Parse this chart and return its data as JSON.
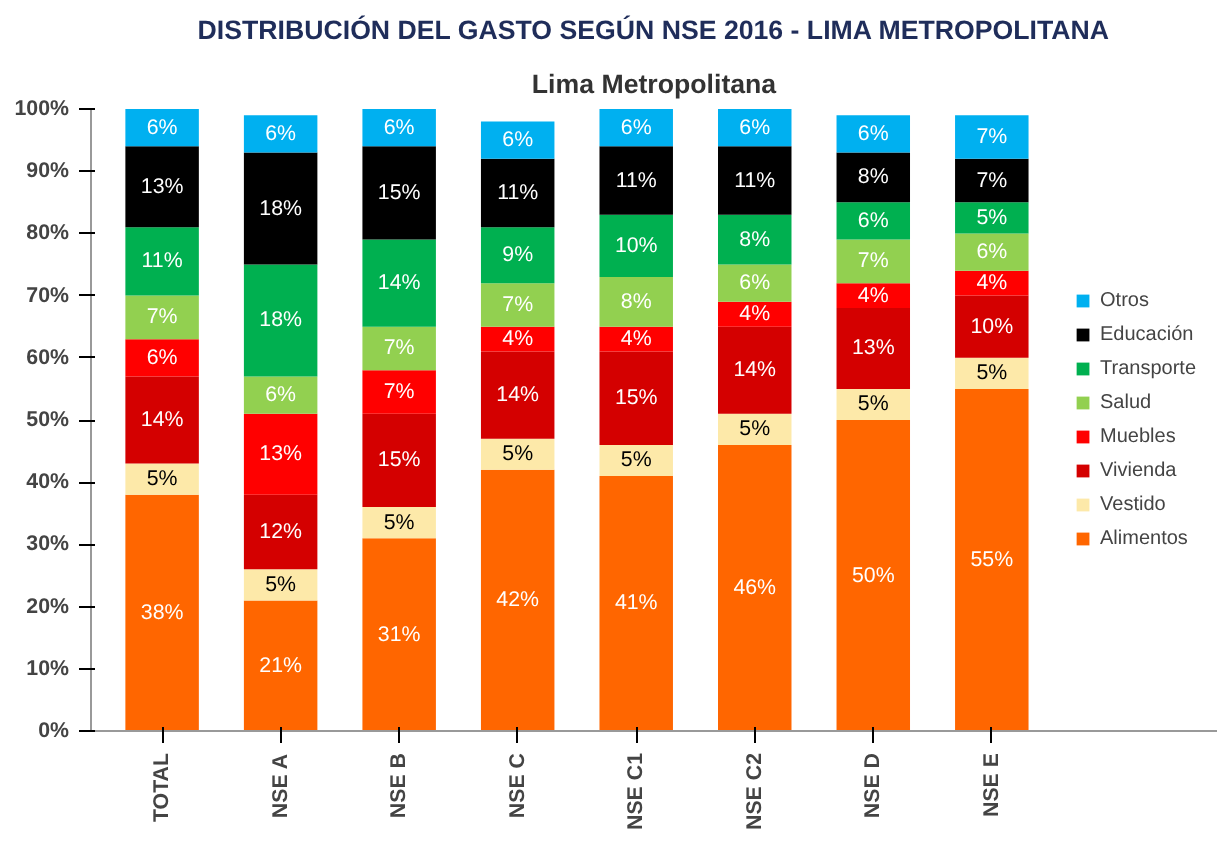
{
  "chart_data": {
    "type": "bar",
    "stacked": true,
    "title": "DISTRIBUCIÓN DEL GASTO SEGÚN NSE 2016 - LIMA METROPOLITANA",
    "subtitle": "Lima Metropolitana",
    "categories": [
      "TOTAL",
      "NSE A",
      "NSE B",
      "NSE C",
      "NSE C1",
      "NSE C2",
      "NSE D",
      "NSE E"
    ],
    "series": [
      {
        "name": "Alimentos",
        "color": "#ff6600",
        "values": [
          38,
          21,
          31,
          42,
          41,
          46,
          50,
          55
        ],
        "value_labels": [
          "38%",
          "21%",
          "31%",
          "42%",
          "41%",
          "46%",
          "50%",
          "55%"
        ]
      },
      {
        "name": "Vestido",
        "color": "#fde9a9",
        "values": [
          5,
          5,
          5,
          5,
          5,
          5,
          5,
          5
        ],
        "value_labels": [
          "5%",
          "5%",
          "5%",
          "5%",
          "5%",
          "5%",
          "5%",
          "5%"
        ]
      },
      {
        "name": "Vivienda",
        "color": "#d40000",
        "values": [
          14,
          12,
          15,
          14,
          15,
          14,
          13,
          10
        ],
        "value_labels": [
          "14%",
          "12%",
          "15%",
          "14%",
          "15%",
          "14%",
          "13%",
          "10%"
        ]
      },
      {
        "name": "Muebles",
        "color": "#ff0000",
        "values": [
          6,
          13,
          7,
          4,
          4,
          4,
          4,
          4
        ],
        "value_labels": [
          "6%",
          "13%",
          "7%",
          "4%",
          "4%",
          "4%",
          "4%",
          "4%"
        ]
      },
      {
        "name": "Salud",
        "color": "#92d050",
        "values": [
          7,
          6,
          7,
          7,
          8,
          6,
          7,
          6
        ],
        "value_labels": [
          "7%",
          "6%",
          "7%",
          "7%",
          "8%",
          "6%",
          "7%",
          "6%"
        ]
      },
      {
        "name": "Transporte",
        "color": "#00b050",
        "values": [
          11,
          18,
          14,
          9,
          10,
          8,
          6,
          5
        ],
        "value_labels": [
          "11%",
          "18%",
          "14%",
          "9%",
          "10%",
          "8%",
          "6%",
          "5%"
        ]
      },
      {
        "name": "Educación",
        "color": "#000000",
        "values": [
          13,
          18,
          15,
          11,
          11,
          11,
          8,
          7
        ],
        "value_labels": [
          "13%",
          "18%",
          "15%",
          "11%",
          "11%",
          "11%",
          "8%",
          "7%"
        ]
      },
      {
        "name": "Otros",
        "color": "#00b0f0",
        "values": [
          6,
          6,
          6,
          6,
          6,
          6,
          6,
          7
        ],
        "value_labels": [
          "6%",
          "6%",
          "6%",
          "6%",
          "6%",
          "6%",
          "6%",
          "7%"
        ]
      }
    ],
    "ylim": [
      0,
      100
    ],
    "yticks": [
      {
        "value": 0,
        "label": "0%"
      },
      {
        "value": 10,
        "label": "10%"
      },
      {
        "value": 20,
        "label": "20%"
      },
      {
        "value": 30,
        "label": "30%"
      },
      {
        "value": 40,
        "label": "40%"
      },
      {
        "value": 50,
        "label": "50%"
      },
      {
        "value": 60,
        "label": "60%"
      },
      {
        "value": 70,
        "label": "70%"
      },
      {
        "value": 80,
        "label": "80%"
      },
      {
        "value": 90,
        "label": "90%"
      },
      {
        "value": 100,
        "label": "100%"
      }
    ],
    "legend": "right"
  }
}
